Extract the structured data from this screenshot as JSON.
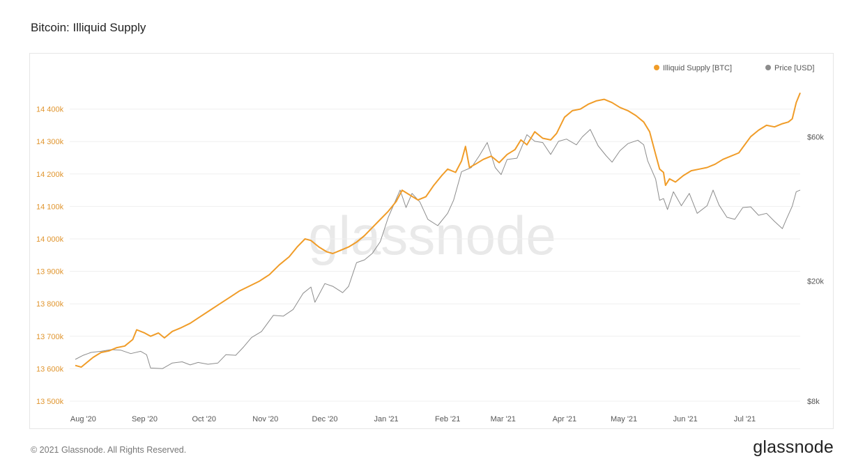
{
  "page": {
    "title": "Bitcoin: Illiquid Supply",
    "copyright": "© 2021 Glassnode. All Rights Reserved.",
    "brand": "glassnode",
    "watermark": "glassnode"
  },
  "colors": {
    "illiquid": "#f09c28",
    "price": "#8c8c8c",
    "left_axis_text": "#e0952e",
    "grid": "#efefef"
  },
  "chart_data": {
    "type": "line",
    "title": "Bitcoin: Illiquid Supply",
    "legend_position": "top-right",
    "grid": true,
    "x_ticks": [
      "Aug '20",
      "Sep '20",
      "Oct '20",
      "Nov '20",
      "Dec '20",
      "Jan '21",
      "Feb '21",
      "Mar '21",
      "Apr '21",
      "May '21",
      "Jun '21",
      "Jul '21"
    ],
    "x_tick_dates": [
      "2020-08-01",
      "2020-09-01",
      "2020-10-01",
      "2020-11-01",
      "2020-12-01",
      "2021-01-01",
      "2021-02-01",
      "2021-03-01",
      "2021-04-01",
      "2021-05-01",
      "2021-06-01",
      "2021-07-01"
    ],
    "xlim": [
      "2020-07-28",
      "2021-07-29"
    ],
    "y_left": {
      "ylim": [
        13500,
        14500
      ],
      "ticks": [
        13500,
        13600,
        13700,
        13800,
        13900,
        14000,
        14100,
        14200,
        14300,
        14400
      ],
      "tick_labels": [
        "13 500k",
        "13 600k",
        "13 700k",
        "13 800k",
        "13 900k",
        "14 000k",
        "14 100k",
        "14 200k",
        "14 300k",
        "14 400k"
      ]
    },
    "y_right": {
      "scale": "log",
      "ylim": [
        8000,
        95000
      ],
      "ticks": [
        8000,
        20000,
        60000
      ],
      "tick_labels": [
        "$8k",
        "$20k",
        "$60k"
      ]
    },
    "series": [
      {
        "name": "Illiquid Supply [BTC]",
        "axis": "left",
        "points": [
          [
            "2020-07-28",
            13610
          ],
          [
            "2020-07-31",
            13605
          ],
          [
            "2020-08-03",
            13620
          ],
          [
            "2020-08-06",
            13635
          ],
          [
            "2020-08-10",
            13650
          ],
          [
            "2020-08-14",
            13655
          ],
          [
            "2020-08-18",
            13665
          ],
          [
            "2020-08-22",
            13670
          ],
          [
            "2020-08-26",
            13690
          ],
          [
            "2020-08-28",
            13720
          ],
          [
            "2020-09-01",
            13710
          ],
          [
            "2020-09-04",
            13700
          ],
          [
            "2020-09-08",
            13710
          ],
          [
            "2020-09-11",
            13695
          ],
          [
            "2020-09-15",
            13715
          ],
          [
            "2020-09-19",
            13725
          ],
          [
            "2020-09-24",
            13740
          ],
          [
            "2020-09-29",
            13760
          ],
          [
            "2020-10-04",
            13780
          ],
          [
            "2020-10-09",
            13800
          ],
          [
            "2020-10-14",
            13820
          ],
          [
            "2020-10-19",
            13840
          ],
          [
            "2020-10-24",
            13855
          ],
          [
            "2020-10-29",
            13870
          ],
          [
            "2020-11-03",
            13890
          ],
          [
            "2020-11-08",
            13920
          ],
          [
            "2020-11-13",
            13945
          ],
          [
            "2020-11-17",
            13975
          ],
          [
            "2020-11-21",
            14000
          ],
          [
            "2020-11-24",
            13995
          ],
          [
            "2020-11-28",
            13975
          ],
          [
            "2020-12-02",
            13960
          ],
          [
            "2020-12-05",
            13955
          ],
          [
            "2020-12-09",
            13965
          ],
          [
            "2020-12-13",
            13975
          ],
          [
            "2020-12-17",
            13990
          ],
          [
            "2020-12-21",
            14010
          ],
          [
            "2020-12-25",
            14035
          ],
          [
            "2020-12-29",
            14060
          ],
          [
            "2021-01-02",
            14085
          ],
          [
            "2021-01-06",
            14115
          ],
          [
            "2021-01-09",
            14150
          ],
          [
            "2021-01-13",
            14135
          ],
          [
            "2021-01-17",
            14120
          ],
          [
            "2021-01-21",
            14130
          ],
          [
            "2021-01-25",
            14165
          ],
          [
            "2021-01-29",
            14195
          ],
          [
            "2021-02-01",
            14215
          ],
          [
            "2021-02-05",
            14205
          ],
          [
            "2021-02-08",
            14240
          ],
          [
            "2021-02-10",
            14285
          ],
          [
            "2021-02-12",
            14220
          ],
          [
            "2021-02-15",
            14230
          ],
          [
            "2021-02-19",
            14245
          ],
          [
            "2021-02-23",
            14255
          ],
          [
            "2021-02-27",
            14235
          ],
          [
            "2021-03-03",
            14260
          ],
          [
            "2021-03-07",
            14275
          ],
          [
            "2021-03-10",
            14305
          ],
          [
            "2021-03-13",
            14290
          ],
          [
            "2021-03-17",
            14330
          ],
          [
            "2021-03-21",
            14310
          ],
          [
            "2021-03-25",
            14305
          ],
          [
            "2021-03-28",
            14325
          ],
          [
            "2021-04-01",
            14375
          ],
          [
            "2021-04-05",
            14395
          ],
          [
            "2021-04-09",
            14400
          ],
          [
            "2021-04-13",
            14415
          ],
          [
            "2021-04-17",
            14425
          ],
          [
            "2021-04-21",
            14430
          ],
          [
            "2021-04-25",
            14420
          ],
          [
            "2021-04-29",
            14405
          ],
          [
            "2021-05-03",
            14395
          ],
          [
            "2021-05-07",
            14380
          ],
          [
            "2021-05-11",
            14360
          ],
          [
            "2021-05-14",
            14330
          ],
          [
            "2021-05-17",
            14260
          ],
          [
            "2021-05-19",
            14215
          ],
          [
            "2021-05-21",
            14205
          ],
          [
            "2021-05-22",
            14165
          ],
          [
            "2021-05-24",
            14185
          ],
          [
            "2021-05-27",
            14175
          ],
          [
            "2021-05-31",
            14195
          ],
          [
            "2021-06-04",
            14210
          ],
          [
            "2021-06-08",
            14215
          ],
          [
            "2021-06-12",
            14220
          ],
          [
            "2021-06-16",
            14230
          ],
          [
            "2021-06-20",
            14245
          ],
          [
            "2021-06-24",
            14255
          ],
          [
            "2021-06-28",
            14265
          ],
          [
            "2021-07-01",
            14290
          ],
          [
            "2021-07-04",
            14315
          ],
          [
            "2021-07-08",
            14335
          ],
          [
            "2021-07-12",
            14350
          ],
          [
            "2021-07-16",
            14345
          ],
          [
            "2021-07-20",
            14355
          ],
          [
            "2021-07-23",
            14360
          ],
          [
            "2021-07-25",
            14370
          ],
          [
            "2021-07-27",
            14420
          ],
          [
            "2021-07-29",
            14450
          ]
        ]
      },
      {
        "name": "Price [USD]",
        "axis": "right",
        "points": [
          [
            "2020-07-28",
            11000
          ],
          [
            "2020-08-01",
            11350
          ],
          [
            "2020-08-05",
            11600
          ],
          [
            "2020-08-10",
            11700
          ],
          [
            "2020-08-15",
            11850
          ],
          [
            "2020-08-20",
            11800
          ],
          [
            "2020-08-25",
            11500
          ],
          [
            "2020-08-30",
            11700
          ],
          [
            "2020-09-02",
            11400
          ],
          [
            "2020-09-04",
            10300
          ],
          [
            "2020-09-10",
            10250
          ],
          [
            "2020-09-15",
            10700
          ],
          [
            "2020-09-20",
            10800
          ],
          [
            "2020-09-24",
            10550
          ],
          [
            "2020-09-28",
            10750
          ],
          [
            "2020-10-03",
            10600
          ],
          [
            "2020-10-08",
            10700
          ],
          [
            "2020-10-12",
            11400
          ],
          [
            "2020-10-17",
            11350
          ],
          [
            "2020-10-21",
            12100
          ],
          [
            "2020-10-25",
            13000
          ],
          [
            "2020-10-30",
            13600
          ],
          [
            "2020-11-05",
            15400
          ],
          [
            "2020-11-10",
            15300
          ],
          [
            "2020-11-15",
            16100
          ],
          [
            "2020-11-20",
            18200
          ],
          [
            "2020-11-24",
            19100
          ],
          [
            "2020-11-26",
            17000
          ],
          [
            "2020-12-01",
            19600
          ],
          [
            "2020-12-05",
            19200
          ],
          [
            "2020-12-10",
            18300
          ],
          [
            "2020-12-13",
            19200
          ],
          [
            "2020-12-17",
            23000
          ],
          [
            "2020-12-21",
            23500
          ],
          [
            "2020-12-25",
            24700
          ],
          [
            "2020-12-29",
            27000
          ],
          [
            "2021-01-02",
            32500
          ],
          [
            "2021-01-08",
            40000
          ],
          [
            "2021-01-11",
            35000
          ],
          [
            "2021-01-14",
            39000
          ],
          [
            "2021-01-18",
            36500
          ],
          [
            "2021-01-22",
            32000
          ],
          [
            "2021-01-27",
            30500
          ],
          [
            "2021-02-01",
            33500
          ],
          [
            "2021-02-04",
            37000
          ],
          [
            "2021-02-08",
            46000
          ],
          [
            "2021-02-13",
            47500
          ],
          [
            "2021-02-17",
            52000
          ],
          [
            "2021-02-21",
            57500
          ],
          [
            "2021-02-25",
            47500
          ],
          [
            "2021-02-28",
            45000
          ],
          [
            "2021-03-03",
            50500
          ],
          [
            "2021-03-08",
            51000
          ],
          [
            "2021-03-13",
            61000
          ],
          [
            "2021-03-17",
            58000
          ],
          [
            "2021-03-21",
            57500
          ],
          [
            "2021-03-25",
            52500
          ],
          [
            "2021-03-29",
            58000
          ],
          [
            "2021-04-02",
            59000
          ],
          [
            "2021-04-07",
            56500
          ],
          [
            "2021-04-10",
            60000
          ],
          [
            "2021-04-14",
            63500
          ],
          [
            "2021-04-18",
            56000
          ],
          [
            "2021-04-22",
            52000
          ],
          [
            "2021-04-25",
            49500
          ],
          [
            "2021-04-29",
            54000
          ],
          [
            "2021-05-03",
            57000
          ],
          [
            "2021-05-08",
            58500
          ],
          [
            "2021-05-11",
            56500
          ],
          [
            "2021-05-13",
            50000
          ],
          [
            "2021-05-17",
            43500
          ],
          [
            "2021-05-19",
            37000
          ],
          [
            "2021-05-21",
            37500
          ],
          [
            "2021-05-23",
            34500
          ],
          [
            "2021-05-26",
            39500
          ],
          [
            "2021-05-30",
            35500
          ],
          [
            "2021-06-03",
            39000
          ],
          [
            "2021-06-07",
            33500
          ],
          [
            "2021-06-12",
            35500
          ],
          [
            "2021-06-15",
            40000
          ],
          [
            "2021-06-18",
            35700
          ],
          [
            "2021-06-22",
            32500
          ],
          [
            "2021-06-26",
            32000
          ],
          [
            "2021-06-30",
            35000
          ],
          [
            "2021-07-04",
            35200
          ],
          [
            "2021-07-08",
            33000
          ],
          [
            "2021-07-12",
            33500
          ],
          [
            "2021-07-16",
            31500
          ],
          [
            "2021-07-20",
            29800
          ],
          [
            "2021-07-22",
            32000
          ],
          [
            "2021-07-25",
            35400
          ],
          [
            "2021-07-27",
            39500
          ],
          [
            "2021-07-29",
            40000
          ]
        ]
      }
    ]
  }
}
